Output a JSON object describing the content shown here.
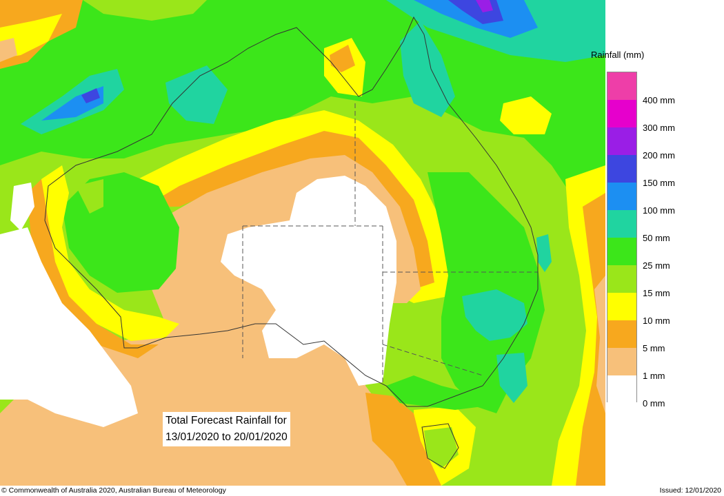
{
  "legend": {
    "title": "Rainfall (mm)",
    "bins": [
      {
        "label": "",
        "color": "#ee3ea8"
      },
      {
        "label": "400 mm",
        "color": "#e600cc"
      },
      {
        "label": "300 mm",
        "color": "#9a1ee6"
      },
      {
        "label": "200 mm",
        "color": "#3d46e0"
      },
      {
        "label": "150 mm",
        "color": "#1c8ff2"
      },
      {
        "label": "100 mm",
        "color": "#20d4a0"
      },
      {
        "label": "50 mm",
        "color": "#3ce61a"
      },
      {
        "label": "25 mm",
        "color": "#9ae61a"
      },
      {
        "label": "15 mm",
        "color": "#ffff00"
      },
      {
        "label": "10 mm",
        "color": "#f7a81e"
      },
      {
        "label": "5 mm",
        "color": "#f7c07a"
      },
      {
        "label": "1 mm",
        "color": "#ffffff"
      }
    ],
    "bottom_label": "0 mm"
  },
  "forecast": {
    "line1": "Total Forecast Rainfall for",
    "line2": "13/01/2020 to 20/01/2020"
  },
  "footer": {
    "copyright": "© Commonwealth of Australia 2020, Australian Bureau of Meteorology",
    "issued": "Issued: 12/01/2020"
  },
  "colors": {
    "none": "#ffffff",
    "r1": "#f7c07a",
    "r5": "#f7a81e",
    "r10": "#ffff00",
    "r15": "#9ae61a",
    "r25": "#3ce61a",
    "r50": "#20d4a0",
    "r100": "#1c8ff2",
    "r150": "#3d46e0",
    "r200": "#9a1ee6"
  }
}
